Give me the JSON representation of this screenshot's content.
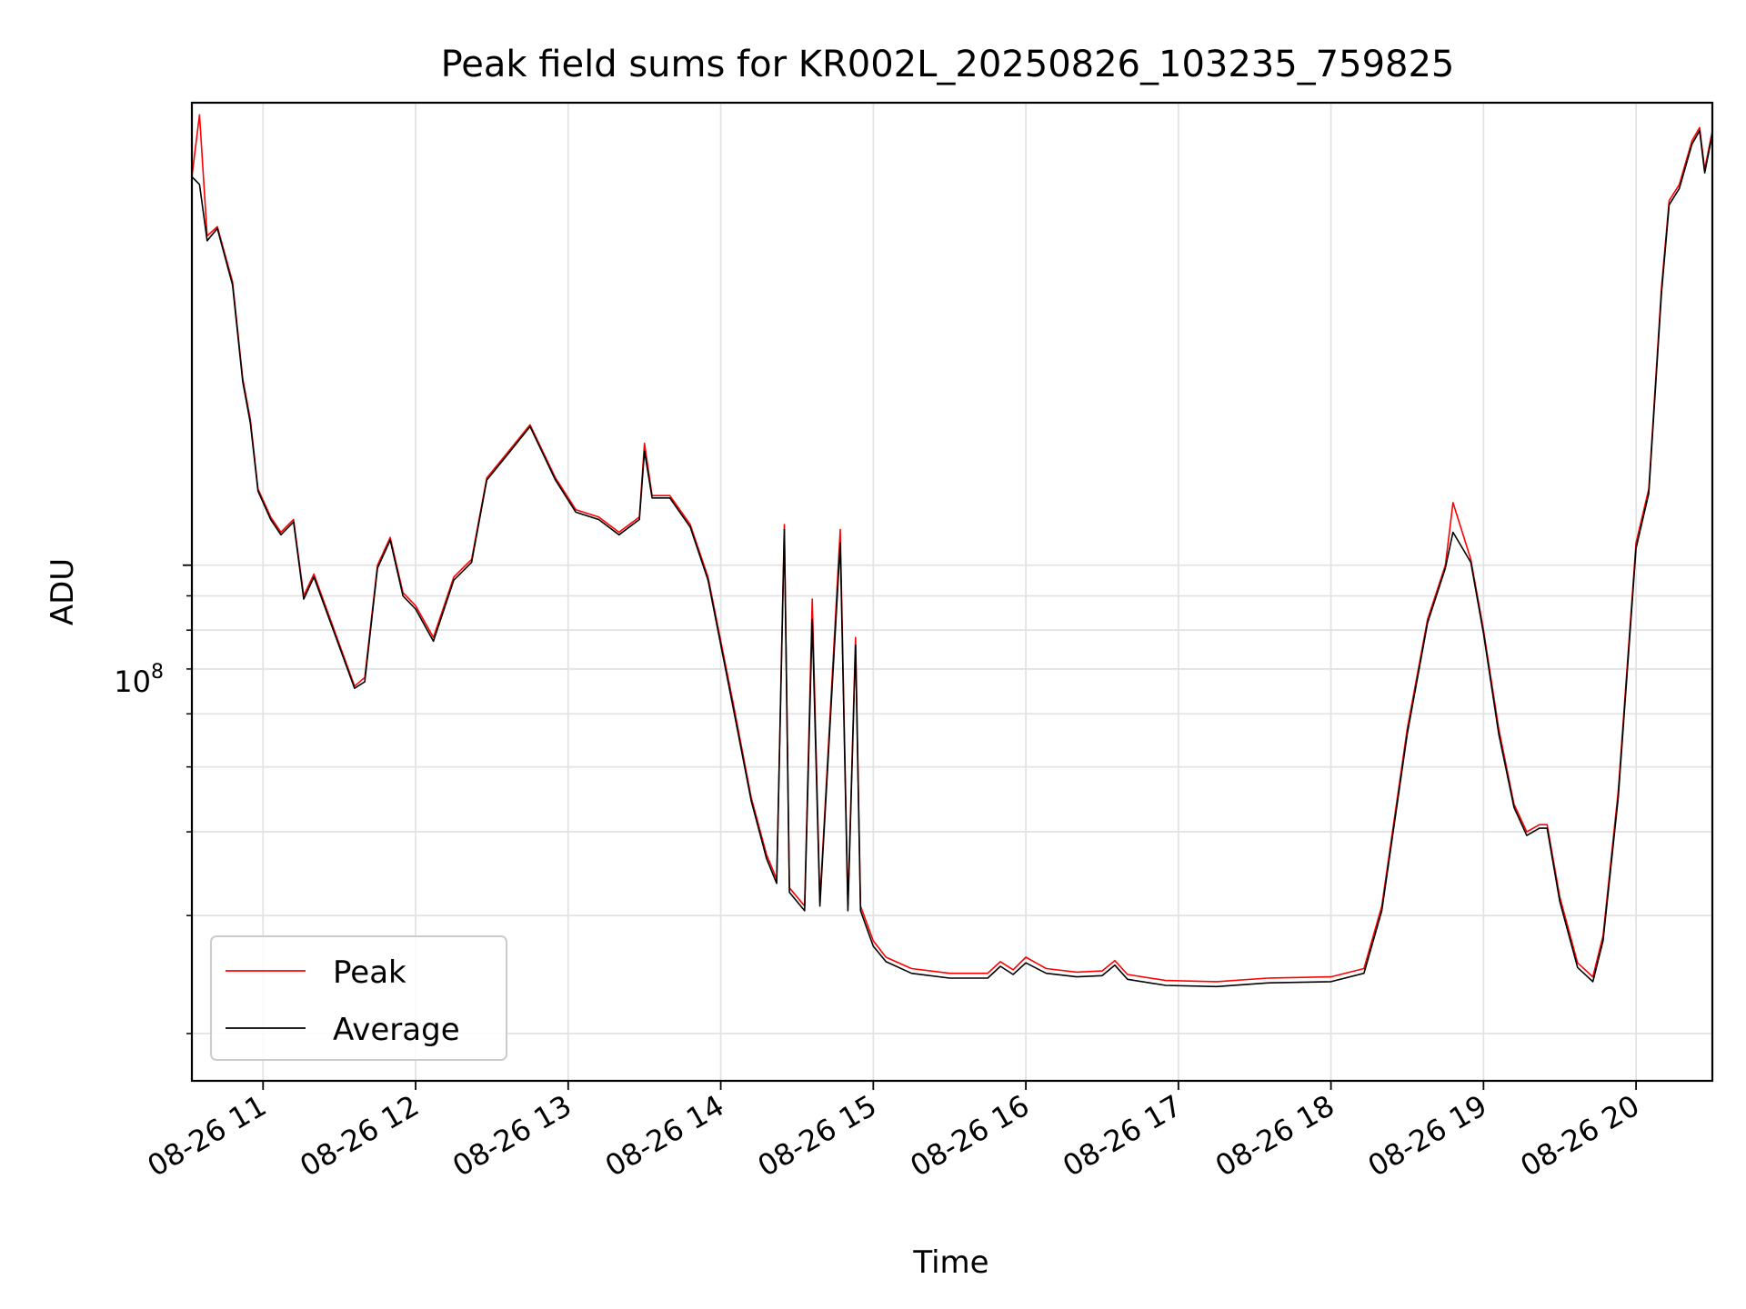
{
  "chart_data": {
    "type": "line",
    "title": "Peak field sums for KR002L_20250826_103235_759825",
    "xlabel": "Time",
    "ylabel": "ADU",
    "yscale": "log",
    "grid": true,
    "legend_loc": "lower left",
    "x_ticks": [
      "08-26 11",
      "08-26 12",
      "08-26 13",
      "08-26 14",
      "08-26 15",
      "08-26 16",
      "08-26 17",
      "08-26 18",
      "08-26 19",
      "08-26 20"
    ],
    "xlim": [
      "08-26 10:32",
      "08-26 20:30"
    ],
    "y_tick_major": {
      "value": 100000000,
      "label": "10",
      "exponent": "8"
    },
    "y_ticks_minor": [
      20000000,
      30000000,
      40000000,
      50000000,
      60000000,
      70000000,
      80000000,
      90000000
    ],
    "ylim": [
      17000000,
      490000000
    ],
    "series": [
      {
        "name": "Peak",
        "color": "#ff0000",
        "points": [
          [
            "08-26 10:32",
            380000000
          ],
          [
            "08-26 10:35",
            470000000
          ],
          [
            "08-26 10:38",
            310000000
          ],
          [
            "08-26 10:42",
            320000000
          ],
          [
            "08-26 10:48",
            265000000
          ],
          [
            "08-26 10:52",
            190000000
          ],
          [
            "08-26 10:55",
            165000000
          ],
          [
            "08-26 10:58",
            130000000
          ],
          [
            "08-26 11:03",
            118000000
          ],
          [
            "08-26 11:07",
            112000000
          ],
          [
            "08-26 11:12",
            117000000
          ],
          [
            "08-26 11:16",
            90000000
          ],
          [
            "08-26 11:20",
            97000000
          ],
          [
            "08-26 11:36",
            66000000
          ],
          [
            "08-26 11:40",
            68000000
          ],
          [
            "08-26 11:45",
            100000000
          ],
          [
            "08-26 11:50",
            110000000
          ],
          [
            "08-26 11:55",
            91000000
          ],
          [
            "08-26 12:00",
            87000000
          ],
          [
            "08-26 12:07",
            78000000
          ],
          [
            "08-26 12:15",
            96000000
          ],
          [
            "08-26 12:22",
            102000000
          ],
          [
            "08-26 12:28",
            135000000
          ],
          [
            "08-26 12:36",
            147000000
          ],
          [
            "08-26 12:45",
            162000000
          ],
          [
            "08-26 12:55",
            135000000
          ],
          [
            "08-26 13:03",
            121000000
          ],
          [
            "08-26 13:12",
            118000000
          ],
          [
            "08-26 13:20",
            112000000
          ],
          [
            "08-26 13:28",
            118000000
          ],
          [
            "08-26 13:30",
            152000000
          ],
          [
            "08-26 13:33",
            127000000
          ],
          [
            "08-26 13:40",
            127000000
          ],
          [
            "08-26 13:48",
            115000000
          ],
          [
            "08-26 13:55",
            96000000
          ],
          [
            "08-26 14:05",
            62000000
          ],
          [
            "08-26 14:12",
            45000000
          ],
          [
            "08-26 14:18",
            37000000
          ],
          [
            "08-26 14:22",
            34000000
          ],
          [
            "08-26 14:25",
            115000000
          ],
          [
            "08-26 14:27",
            33000000
          ],
          [
            "08-26 14:33",
            31000000
          ],
          [
            "08-26 14:36",
            89000000
          ],
          [
            "08-26 14:39",
            31500000
          ],
          [
            "08-26 14:47",
            113000000
          ],
          [
            "08-26 14:50",
            31000000
          ],
          [
            "08-26 14:53",
            78000000
          ],
          [
            "08-26 14:55",
            31000000
          ],
          [
            "08-26 15:00",
            27500000
          ],
          [
            "08-26 15:05",
            26000000
          ],
          [
            "08-26 15:15",
            25000000
          ],
          [
            "08-26 15:30",
            24600000
          ],
          [
            "08-26 15:45",
            24600000
          ],
          [
            "08-26 15:50",
            25600000
          ],
          [
            "08-26 15:55",
            24900000
          ],
          [
            "08-26 16:00",
            26000000
          ],
          [
            "08-26 16:08",
            25000000
          ],
          [
            "08-26 16:20",
            24700000
          ],
          [
            "08-26 16:30",
            24800000
          ],
          [
            "08-26 16:35",
            25700000
          ],
          [
            "08-26 16:40",
            24500000
          ],
          [
            "08-26 16:55",
            24000000
          ],
          [
            "08-26 17:15",
            23900000
          ],
          [
            "08-26 17:35",
            24200000
          ],
          [
            "08-26 18:00",
            24300000
          ],
          [
            "08-26 18:13",
            25000000
          ],
          [
            "08-26 18:20",
            31000000
          ],
          [
            "08-26 18:30",
            57000000
          ],
          [
            "08-26 18:38",
            83000000
          ],
          [
            "08-26 18:45",
            100000000
          ],
          [
            "08-26 18:48",
            124000000
          ],
          [
            "08-26 18:55",
            102000000
          ],
          [
            "08-26 19:00",
            80000000
          ],
          [
            "08-26 19:06",
            57000000
          ],
          [
            "08-26 19:12",
            44000000
          ],
          [
            "08-26 19:17",
            40000000
          ],
          [
            "08-26 19:22",
            41000000
          ],
          [
            "08-26 19:25",
            41000000
          ],
          [
            "08-26 19:30",
            32000000
          ],
          [
            "08-26 19:37",
            25500000
          ],
          [
            "08-26 19:43",
            24300000
          ],
          [
            "08-26 19:47",
            28000000
          ],
          [
            "08-26 19:53",
            46000000
          ],
          [
            "08-26 20:00",
            108000000
          ],
          [
            "08-26 20:05",
            130000000
          ],
          [
            "08-26 20:10",
            260000000
          ],
          [
            "08-26 20:13",
            350000000
          ],
          [
            "08-26 20:17",
            370000000
          ],
          [
            "08-26 20:22",
            430000000
          ],
          [
            "08-26 20:25",
            450000000
          ],
          [
            "08-26 20:27",
            390000000
          ],
          [
            "08-26 20:30",
            445000000
          ]
        ]
      },
      {
        "name": "Average",
        "color": "#000000",
        "points": [
          [
            "08-26 10:32",
            380000000
          ],
          [
            "08-26 10:35",
            370000000
          ],
          [
            "08-26 10:38",
            305000000
          ],
          [
            "08-26 10:42",
            318000000
          ],
          [
            "08-26 10:48",
            262000000
          ],
          [
            "08-26 10:52",
            188000000
          ],
          [
            "08-26 10:55",
            163000000
          ],
          [
            "08-26 10:58",
            129000000
          ],
          [
            "08-26 11:03",
            117000000
          ],
          [
            "08-26 11:07",
            111000000
          ],
          [
            "08-26 11:12",
            116000000
          ],
          [
            "08-26 11:16",
            89000000
          ],
          [
            "08-26 11:20",
            96000000
          ],
          [
            "08-26 11:36",
            65500000
          ],
          [
            "08-26 11:40",
            67000000
          ],
          [
            "08-26 11:45",
            99000000
          ],
          [
            "08-26 11:50",
            109000000
          ],
          [
            "08-26 11:55",
            90000000
          ],
          [
            "08-26 12:00",
            86000000
          ],
          [
            "08-26 12:07",
            77000000
          ],
          [
            "08-26 12:15",
            95000000
          ],
          [
            "08-26 12:22",
            101000000
          ],
          [
            "08-26 12:28",
            134000000
          ],
          [
            "08-26 12:36",
            146000000
          ],
          [
            "08-26 12:45",
            161000000
          ],
          [
            "08-26 12:55",
            134000000
          ],
          [
            "08-26 13:03",
            120000000
          ],
          [
            "08-26 13:12",
            117000000
          ],
          [
            "08-26 13:20",
            111000000
          ],
          [
            "08-26 13:28",
            117000000
          ],
          [
            "08-26 13:30",
            148000000
          ],
          [
            "08-26 13:33",
            126000000
          ],
          [
            "08-26 13:40",
            126000000
          ],
          [
            "08-26 13:48",
            114000000
          ],
          [
            "08-26 13:55",
            95000000
          ],
          [
            "08-26 14:05",
            61000000
          ],
          [
            "08-26 14:12",
            44500000
          ],
          [
            "08-26 14:18",
            36500000
          ],
          [
            "08-26 14:22",
            33500000
          ],
          [
            "08-26 14:25",
            113000000
          ],
          [
            "08-26 14:27",
            32500000
          ],
          [
            "08-26 14:33",
            30500000
          ],
          [
            "08-26 14:36",
            83000000
          ],
          [
            "08-26 14:39",
            31000000
          ],
          [
            "08-26 14:47",
            108000000
          ],
          [
            "08-26 14:50",
            30500000
          ],
          [
            "08-26 14:53",
            76000000
          ],
          [
            "08-26 14:55",
            30500000
          ],
          [
            "08-26 15:00",
            27000000
          ],
          [
            "08-26 15:05",
            25600000
          ],
          [
            "08-26 15:15",
            24600000
          ],
          [
            "08-26 15:30",
            24200000
          ],
          [
            "08-26 15:45",
            24200000
          ],
          [
            "08-26 15:50",
            25200000
          ],
          [
            "08-26 15:55",
            24500000
          ],
          [
            "08-26 16:00",
            25500000
          ],
          [
            "08-26 16:08",
            24600000
          ],
          [
            "08-26 16:20",
            24300000
          ],
          [
            "08-26 16:30",
            24400000
          ],
          [
            "08-26 16:35",
            25300000
          ],
          [
            "08-26 16:40",
            24100000
          ],
          [
            "08-26 16:55",
            23600000
          ],
          [
            "08-26 17:15",
            23500000
          ],
          [
            "08-26 17:35",
            23800000
          ],
          [
            "08-26 18:00",
            23900000
          ],
          [
            "08-26 18:13",
            24600000
          ],
          [
            "08-26 18:20",
            30500000
          ],
          [
            "08-26 18:30",
            56000000
          ],
          [
            "08-26 18:38",
            82000000
          ],
          [
            "08-26 18:45",
            99000000
          ],
          [
            "08-26 18:48",
            112000000
          ],
          [
            "08-26 18:55",
            101000000
          ],
          [
            "08-26 19:00",
            79000000
          ],
          [
            "08-26 19:06",
            56000000
          ],
          [
            "08-26 19:12",
            43500000
          ],
          [
            "08-26 19:17",
            39500000
          ],
          [
            "08-26 19:22",
            40500000
          ],
          [
            "08-26 19:25",
            40500000
          ],
          [
            "08-26 19:30",
            31500000
          ],
          [
            "08-26 19:37",
            25100000
          ],
          [
            "08-26 19:43",
            23900000
          ],
          [
            "08-26 19:47",
            27500000
          ],
          [
            "08-26 19:53",
            45000000
          ],
          [
            "08-26 20:00",
            106000000
          ],
          [
            "08-26 20:05",
            128000000
          ],
          [
            "08-26 20:10",
            255000000
          ],
          [
            "08-26 20:13",
            345000000
          ],
          [
            "08-26 20:17",
            365000000
          ],
          [
            "08-26 20:22",
            425000000
          ],
          [
            "08-26 20:25",
            445000000
          ],
          [
            "08-26 20:27",
            385000000
          ],
          [
            "08-26 20:30",
            440000000
          ]
        ]
      }
    ]
  }
}
